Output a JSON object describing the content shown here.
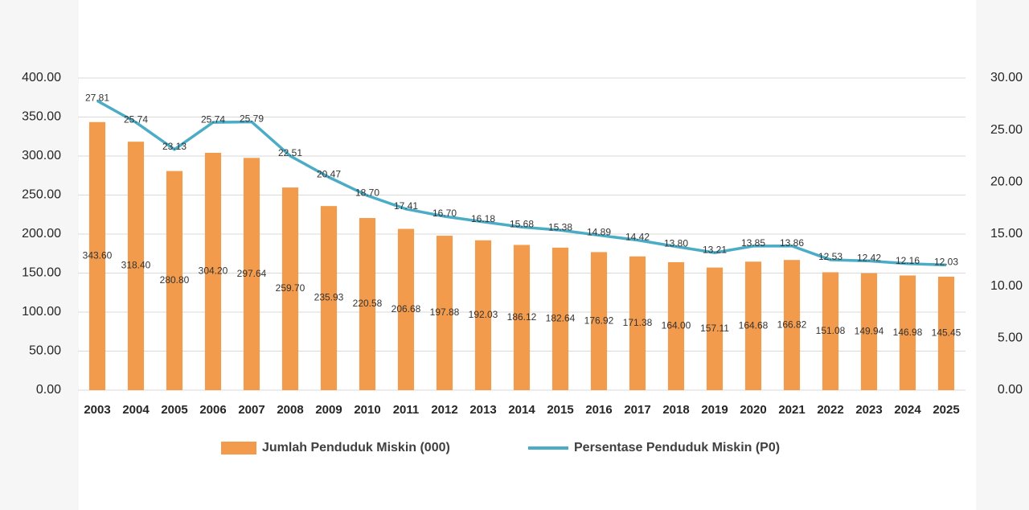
{
  "chart_data": {
    "type": "bar",
    "categories": [
      "2003",
      "2004",
      "2005",
      "2006",
      "2007",
      "2008",
      "2009",
      "2010",
      "2011",
      "2012",
      "2013",
      "2014",
      "2015",
      "2016",
      "2017",
      "2018",
      "2019",
      "2020",
      "2021",
      "2022",
      "2023",
      "2024",
      "2025"
    ],
    "series": [
      {
        "name": "Jumlah Penduduk Miskin (000)",
        "type": "bar",
        "color": "#f29b4c",
        "values": [
          343.6,
          318.4,
          280.8,
          304.2,
          297.64,
          259.7,
          235.93,
          220.58,
          206.68,
          197.88,
          192.03,
          186.12,
          182.64,
          176.92,
          171.38,
          164,
          157.11,
          164.68,
          166.82,
          151.08,
          149.94,
          146.98,
          145.45
        ],
        "value_labels": [
          "343.60",
          "318.40",
          "280.80",
          "304.20",
          "297.64",
          "259.70",
          "235.93",
          "220.58",
          "206.68",
          "197.88",
          "192.03",
          "186.12",
          "182.64",
          "176.92",
          "171.38",
          "164.00",
          "157.11",
          "164.68",
          "166.82",
          "151.08",
          "149.94",
          "146.98",
          "145.45"
        ]
      },
      {
        "name": "Persentase Penduduk Miskin (P0)",
        "type": "line",
        "axis": "y2",
        "color": "#4bacc6",
        "values": [
          27.81,
          25.74,
          23.13,
          25.74,
          25.79,
          22.51,
          20.47,
          18.7,
          17.41,
          16.7,
          16.18,
          15.68,
          15.38,
          14.89,
          14.42,
          13.8,
          13.21,
          13.85,
          13.86,
          12.53,
          12.42,
          12.16,
          12.03
        ],
        "value_labels": [
          "27.81",
          "25.74",
          "23.13",
          "25.74",
          "25.79",
          "22.51",
          "20.47",
          "18.70",
          "17.41",
          "16.70",
          "16.18",
          "15.68",
          "15.38",
          "14.89",
          "14.42",
          "13.80",
          "13.21",
          "13.85",
          "13.86",
          "12.53",
          "12.42",
          "12.16",
          "12.03"
        ]
      }
    ],
    "ylim": [
      0,
      400
    ],
    "yticks": [
      {
        "value": 0,
        "label": "0.00"
      },
      {
        "value": 50,
        "label": "50.00"
      },
      {
        "value": 100,
        "label": "100.00"
      },
      {
        "value": 150,
        "label": "150.00"
      },
      {
        "value": 200,
        "label": "200.00"
      },
      {
        "value": 250,
        "label": "250.00"
      },
      {
        "value": 300,
        "label": "300.00"
      },
      {
        "value": 350,
        "label": "350.00"
      },
      {
        "value": 400,
        "label": "400.00"
      }
    ],
    "y2lim": [
      0,
      30
    ],
    "y2ticks": [
      {
        "value": 0,
        "label": "0.00"
      },
      {
        "value": 5,
        "label": "5.00"
      },
      {
        "value": 10,
        "label": "10.00"
      },
      {
        "value": 15,
        "label": "15.00"
      },
      {
        "value": 20,
        "label": "20.00"
      },
      {
        "value": 25,
        "label": "25.00"
      },
      {
        "value": 30,
        "label": "30.00"
      }
    ],
    "grid": true,
    "legend": "bottom"
  }
}
